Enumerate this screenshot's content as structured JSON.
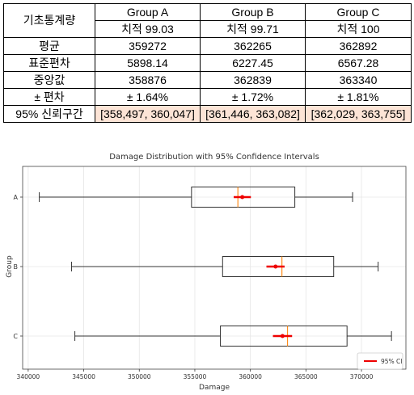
{
  "table": {
    "corner_label": "기초통계량",
    "groups": [
      "Group A",
      "Group B",
      "Group C"
    ],
    "subheaders": [
      "치적 99.03",
      "치적 99.71",
      "치적 100"
    ],
    "rows": [
      {
        "label": "평균",
        "values": [
          "359272",
          "362265",
          "362892"
        ]
      },
      {
        "label": "표준편차",
        "values": [
          "5898.14",
          "6227.45",
          "6567.28"
        ]
      },
      {
        "label": "중앙값",
        "values": [
          "358876",
          "362839",
          "363340"
        ]
      },
      {
        "label": "± 편차",
        "values": [
          "± 1.64%",
          "± 1.72%",
          "± 1.81%"
        ]
      },
      {
        "label": "95% 신뢰구간",
        "values": [
          "[358,497, 360,047]",
          "[361,446, 363,082]",
          "[362,029, 363,755]"
        ]
      }
    ]
  },
  "chart_data": {
    "type": "box",
    "title": "Damage Distribution with 95% Confidence Intervals",
    "xlabel": "Damage",
    "ylabel": "Group",
    "categories": [
      "A",
      "B",
      "C"
    ],
    "xlim": [
      339500,
      374000
    ],
    "xticks": [
      340000,
      345000,
      350000,
      355000,
      360000,
      365000,
      370000
    ],
    "xtick_labels": [
      "340000",
      "345000",
      "350000",
      "355000",
      "360000",
      "365000",
      "370000"
    ],
    "grid": true,
    "legend": {
      "label": "95% CI",
      "position": "bottom-right"
    },
    "boxes": [
      {
        "category": "A",
        "whisker_low": 341000,
        "q1": 354700,
        "median": 358876,
        "q3": 364000,
        "whisker_high": 369200,
        "mean": 359272,
        "ci": [
          358497,
          360047
        ]
      },
      {
        "category": "B",
        "whisker_low": 343900,
        "q1": 357500,
        "median": 362839,
        "q3": 367500,
        "whisker_high": 371500,
        "mean": 362265,
        "ci": [
          361446,
          363082
        ]
      },
      {
        "category": "C",
        "whisker_low": 344200,
        "q1": 357300,
        "median": 363340,
        "q3": 368700,
        "whisker_high": 372700,
        "mean": 362892,
        "ci": [
          362029,
          363755
        ]
      }
    ],
    "colors": {
      "box": "#333333",
      "median": "#ff8c1a",
      "ci": "#ee0000",
      "grid": "#e6e6e6"
    }
  }
}
